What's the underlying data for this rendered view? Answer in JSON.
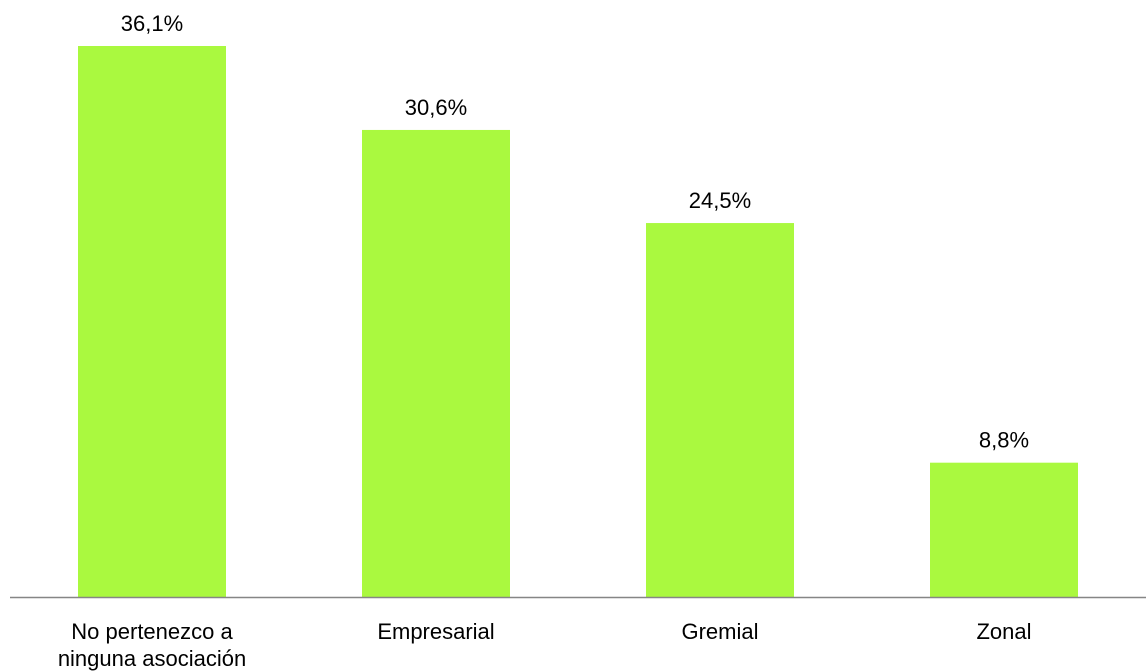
{
  "chart_data": {
    "type": "bar",
    "categories": [
      [
        "No pertenezco a",
        "ninguna asociación"
      ],
      [
        "Empresarial"
      ],
      [
        "Gremial"
      ],
      [
        "Zonal"
      ]
    ],
    "values": [
      36.1,
      30.6,
      24.5,
      8.8
    ],
    "data_labels": [
      "36,1%",
      "30,6%",
      "24,5%",
      "8,8%"
    ],
    "unit": "%",
    "title": "",
    "xlabel": "",
    "ylabel": "",
    "ylim": [
      0,
      36.1
    ],
    "grid": false,
    "legend": "none",
    "bar_color": "#aaf93f",
    "axis_color": "#868686",
    "text_color": "#000000"
  }
}
